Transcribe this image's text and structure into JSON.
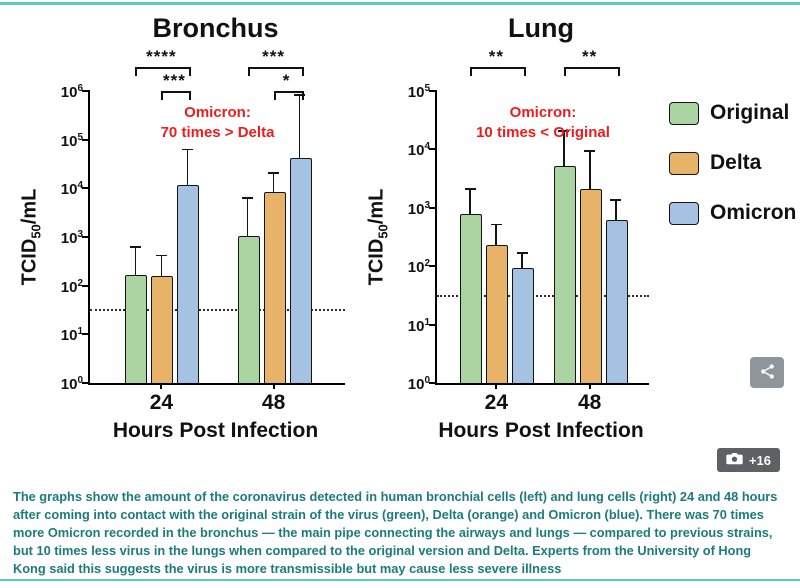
{
  "page": {
    "caption": "The graphs show the amount of the coronavirus detected in human bronchial cells (left) and lung cells (right) 24 and 48 hours after coming into contact with the original strain of the virus (green), Delta (orange) and Omicron (blue). There was 70 times more Omicron recorded in the bronchus — the main pipe connecting the airways and lungs — compared to previous strains, but 10 times less virus in the lungs when compared to the original version and Delta. Experts from the University of Hong Kong said this suggests the virus is more transmissible but may cause less severe illness",
    "photo_badge": "+16",
    "accent_color": "#5cc8cb"
  },
  "legend": {
    "items": [
      {
        "label": "Original",
        "color": "#aad5a3"
      },
      {
        "label": "Delta",
        "color": "#e7b369"
      },
      {
        "label": "Omicron",
        "color": "#a5c2e3"
      }
    ]
  },
  "chart_data": [
    {
      "type": "bar",
      "title": "Bronchus",
      "xlabel": "Hours Post Infection",
      "ylabel": {
        "pre": "TCID",
        "sub": "50",
        "post": "/mL"
      },
      "yscale": "log10",
      "ymin_exp": 0,
      "ymax_exp": 6,
      "categories": [
        "24",
        "48"
      ],
      "series": [
        {
          "name": "Original",
          "values": [
            160,
            1000
          ],
          "errors_high": [
            600,
            6000
          ]
        },
        {
          "name": "Delta",
          "values": [
            150,
            8000
          ],
          "errors_high": [
            400,
            20000
          ]
        },
        {
          "name": "Omicron",
          "values": [
            11000,
            40000
          ],
          "errors_high": [
            60000,
            800000
          ]
        }
      ],
      "detection_limit": 30,
      "annotation": {
        "lines": [
          "Omicron:",
          "70 times > Delta"
        ],
        "color": "#ee1c1c"
      },
      "significance": [
        {
          "category": 0,
          "from": 0,
          "to": 2,
          "label": "****",
          "row": 0
        },
        {
          "category": 0,
          "from": 1,
          "to": 2,
          "label": "***",
          "row": 1
        },
        {
          "category": 1,
          "from": 0,
          "to": 2,
          "label": "***",
          "row": 0
        },
        {
          "category": 1,
          "from": 1,
          "to": 2,
          "label": "*",
          "row": 1
        }
      ]
    },
    {
      "type": "bar",
      "title": "Lung",
      "xlabel": "Hours Post Infection",
      "ylabel": {
        "pre": "TCID",
        "sub": "50",
        "post": "/mL"
      },
      "yscale": "log10",
      "ymin_exp": 0,
      "ymax_exp": 5,
      "categories": [
        "24",
        "48"
      ],
      "series": [
        {
          "name": "Original",
          "values": [
            750,
            5000
          ],
          "errors_high": [
            2000,
            20000
          ]
        },
        {
          "name": "Delta",
          "values": [
            220,
            2000
          ],
          "errors_high": [
            500,
            9000
          ]
        },
        {
          "name": "Omicron",
          "values": [
            90,
            600
          ],
          "errors_high": [
            160,
            1300
          ]
        }
      ],
      "detection_limit": 30,
      "annotation": {
        "lines": [
          "Omicron:",
          "10 times < Original"
        ],
        "color": "#ee1c1c"
      },
      "significance": [
        {
          "category": 0,
          "from": 0,
          "to": 2,
          "label": "**",
          "row": 0
        },
        {
          "category": 1,
          "from": 0,
          "to": 2,
          "label": "**",
          "row": 0
        }
      ]
    }
  ]
}
